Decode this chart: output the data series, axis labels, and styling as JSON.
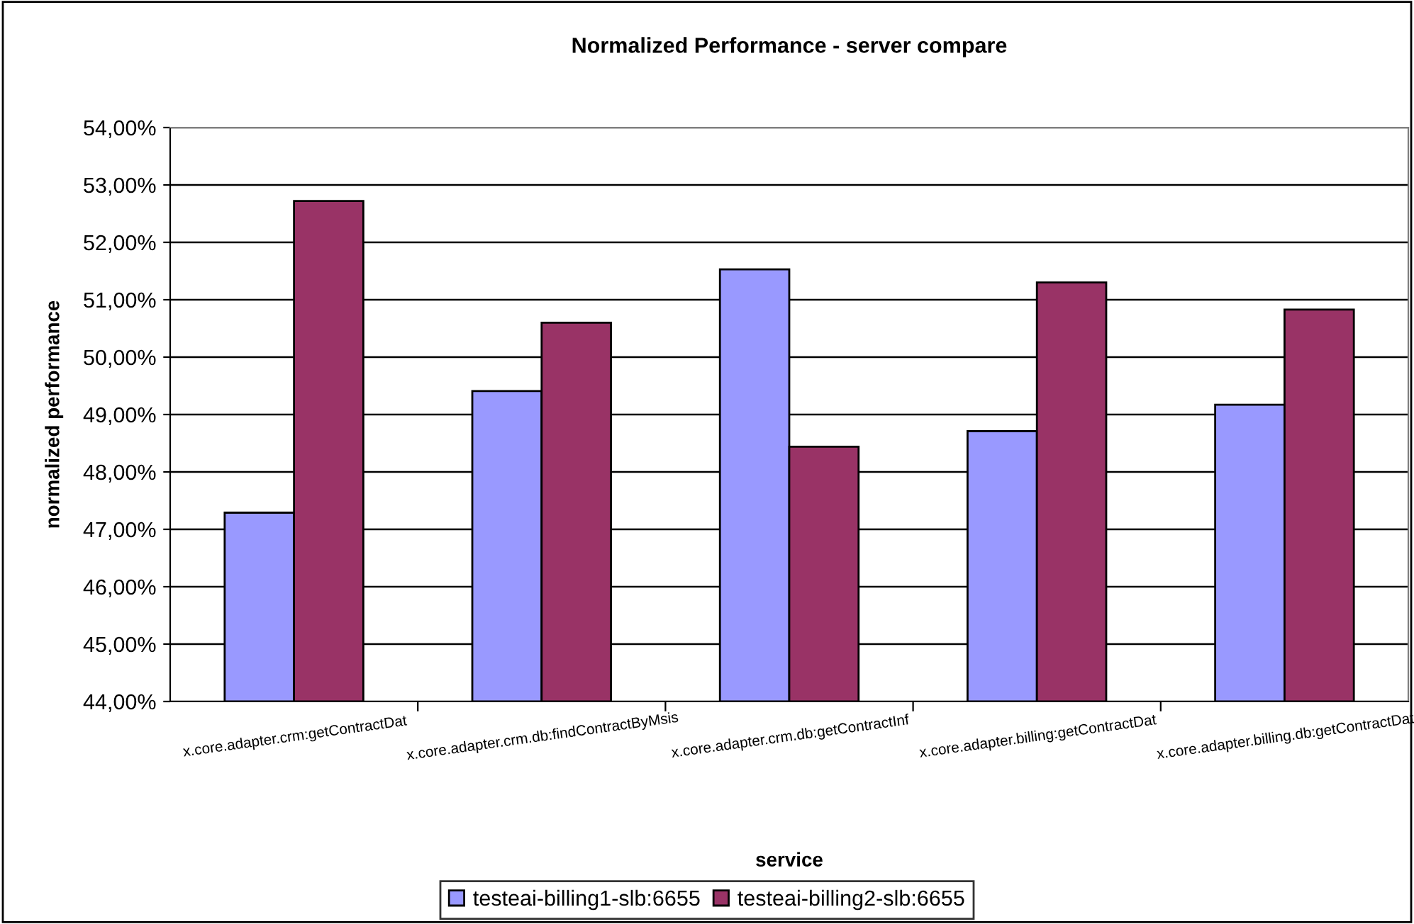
{
  "chart_data": {
    "type": "bar",
    "title": "Normalized Performance - server compare",
    "xlabel": "service",
    "ylabel": "normalized performance",
    "categories": [
      "x.core.adapter.crm:getContractDat",
      "x.core.adapter.crm.db:findContractByMsis",
      "x.core.adapter.crm.db:getContractInf",
      "x.core.adapter.billing:getContractDat",
      "x.core.adapter.billing.db:getContractDat"
    ],
    "series": [
      {
        "name": "testeai-billing1-slb:6655",
        "color": "#9999ff",
        "values": [
          47.29,
          49.41,
          51.53,
          48.71,
          49.17
        ]
      },
      {
        "name": "testeai-billing2-slb:6655",
        "color": "#993366",
        "values": [
          52.72,
          50.6,
          48.44,
          51.3,
          50.83
        ]
      }
    ],
    "ylim": [
      44,
      54
    ],
    "yticks": [
      {
        "value": 44,
        "label": "44,00%"
      },
      {
        "value": 45,
        "label": "45,00%"
      },
      {
        "value": 46,
        "label": "46,00%"
      },
      {
        "value": 47,
        "label": "47,00%"
      },
      {
        "value": 48,
        "label": "48,00%"
      },
      {
        "value": 49,
        "label": "49,00%"
      },
      {
        "value": 50,
        "label": "50,00%"
      },
      {
        "value": 51,
        "label": "51,00%"
      },
      {
        "value": 52,
        "label": "52,00%"
      },
      {
        "value": 53,
        "label": "53,00%"
      },
      {
        "value": 54,
        "label": "54,00%"
      }
    ],
    "grid": "y",
    "legend": "bottom"
  }
}
